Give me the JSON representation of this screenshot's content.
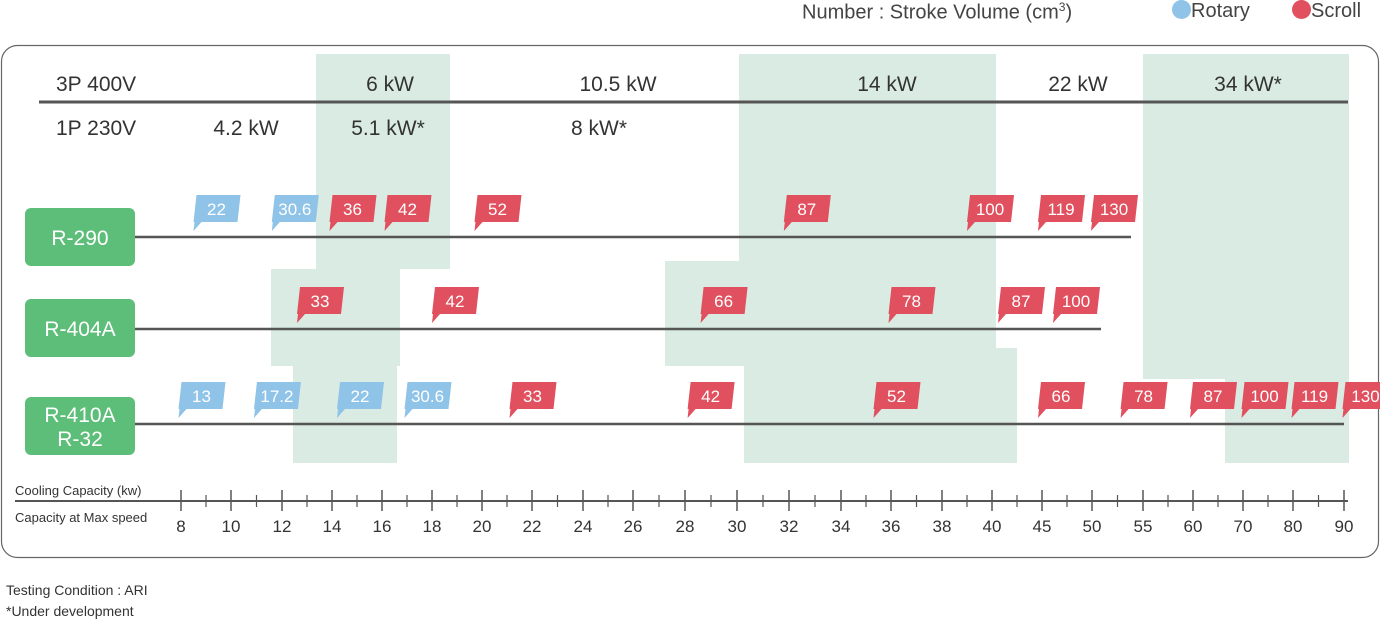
{
  "header": {
    "number_label": "Number : Stroke Volume (cm",
    "number_sup": "3",
    "number_close": ")",
    "legend": [
      {
        "name": "Rotary",
        "color": "#8fc4e8"
      },
      {
        "name": "Scroll",
        "color": "#e0505e"
      }
    ]
  },
  "colors": {
    "band": "#d9ebe2",
    "refrigerant_box": "#5dbe79",
    "rotary": "#8fc4e8",
    "scroll": "#e0505e",
    "line": "#555555"
  },
  "power": {
    "three_phase": {
      "label": "3P 400V",
      "capacities": [
        "6 kW",
        "10.5 kW",
        "14 kW",
        "22 kW",
        "34 kW*"
      ]
    },
    "single_phase": {
      "label": "1P 230V",
      "capacities": [
        "4.2 kW",
        "5.1 kW*",
        "8 kW*"
      ]
    }
  },
  "axis": {
    "label_top": "Cooling Capacity (kw)",
    "label_bottom": "Capacity at Max speed",
    "ticks": [
      "8",
      "10",
      "12",
      "14",
      "16",
      "18",
      "20",
      "22",
      "24",
      "26",
      "28",
      "30",
      "32",
      "34",
      "36",
      "38",
      "40",
      "45",
      "50",
      "55",
      "60",
      "70",
      "80",
      "90"
    ]
  },
  "refrigerants": [
    {
      "name": [
        "R-290"
      ],
      "compressors": [
        {
          "type": "rotary",
          "label": "22",
          "capacity": 8.5
        },
        {
          "type": "rotary",
          "label": "30.6",
          "capacity": 11.6
        },
        {
          "type": "scroll",
          "label": "36",
          "capacity": 13.9
        },
        {
          "type": "scroll",
          "label": "42",
          "capacity": 16.1
        },
        {
          "type": "scroll",
          "label": "52",
          "capacity": 19.7
        },
        {
          "type": "scroll",
          "label": "87",
          "capacity": 31.8
        },
        {
          "type": "scroll",
          "label": "100",
          "capacity": 39.0
        },
        {
          "type": "scroll",
          "label": "119",
          "capacity": 44.6
        },
        {
          "type": "scroll",
          "label": "130",
          "capacity": 49.9
        }
      ]
    },
    {
      "name": [
        "R-404A"
      ],
      "compressors": [
        {
          "type": "scroll",
          "label": "33",
          "capacity": 12.6
        },
        {
          "type": "scroll",
          "label": "42",
          "capacity": 18.0
        },
        {
          "type": "scroll",
          "label": "66",
          "capacity": 28.6
        },
        {
          "type": "scroll",
          "label": "78",
          "capacity": 35.9
        },
        {
          "type": "scroll",
          "label": "87",
          "capacity": 40.6
        },
        {
          "type": "scroll",
          "label": "100",
          "capacity": 46.1
        }
      ]
    },
    {
      "name": [
        "R-410A",
        "R-32"
      ],
      "compressors": [
        {
          "type": "rotary",
          "label": "13",
          "capacity": 7.9
        },
        {
          "type": "rotary",
          "label": "17.2",
          "capacity": 10.9
        },
        {
          "type": "rotary",
          "label": "22",
          "capacity": 14.2
        },
        {
          "type": "rotary",
          "label": "30.6",
          "capacity": 16.9
        },
        {
          "type": "scroll",
          "label": "33",
          "capacity": 21.1
        },
        {
          "type": "scroll",
          "label": "42",
          "capacity": 28.1
        },
        {
          "type": "scroll",
          "label": "52",
          "capacity": 35.3
        },
        {
          "type": "scroll",
          "label": "66",
          "capacity": 44.6
        },
        {
          "type": "scroll",
          "label": "78",
          "capacity": 52.8
        },
        {
          "type": "scroll",
          "label": "87",
          "capacity": 59.7
        },
        {
          "type": "scroll",
          "label": "100",
          "capacity": 69.7
        },
        {
          "type": "scroll",
          "label": "119",
          "capacity": 79.7
        },
        {
          "type": "scroll",
          "label": "130",
          "capacity": 89.7
        }
      ]
    }
  ],
  "footer": {
    "line1": "Testing Condition : ARI",
    "line2": "*Under development"
  }
}
